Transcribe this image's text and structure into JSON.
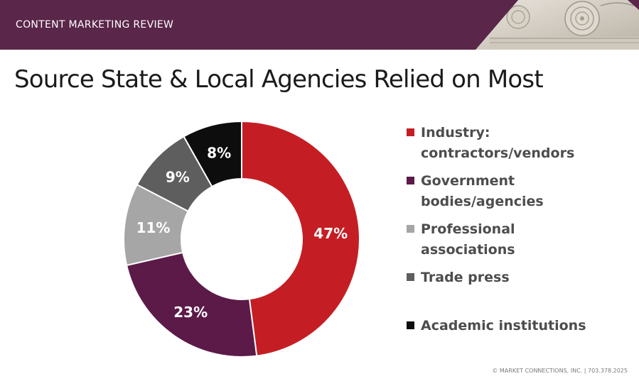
{
  "header": {
    "label": "CONTENT MARKETING REVIEW",
    "bar_color": "#5a2649",
    "decoration": "column-capital-photo"
  },
  "title": "Source State & Local Agencies Relied on Most",
  "chart_data": {
    "type": "pie",
    "variant": "donut",
    "title": "",
    "categories": [
      "Industry: contractors/vendors",
      "Government bodies/agencies",
      "Professional associations",
      "Trade press",
      "Academic institutions"
    ],
    "values": [
      47,
      23,
      11,
      9,
      8
    ],
    "labels": [
      "47%",
      "23%",
      "11%",
      "9%",
      "8%"
    ],
    "colors": [
      "#c41e24",
      "#5c1a48",
      "#a6a6a6",
      "#5e5e5e",
      "#0d0d0d"
    ],
    "start_angle_deg": 0,
    "direction": "clockwise",
    "legend_position": "right"
  },
  "legend": {
    "items": [
      {
        "label": "Industry: contractors/vendors",
        "color": "#c41e24"
      },
      {
        "label": "Government bodies/agencies",
        "color": "#5c1a48"
      },
      {
        "label": "Professional associations",
        "color": "#a6a6a6"
      },
      {
        "label": "Trade press",
        "color": "#5e5e5e"
      },
      {
        "label": "Academic institutions",
        "color": "#0d0d0d"
      }
    ]
  },
  "footer": "© MARKET CONNECTIONS, INC.  |  703.378.2025"
}
